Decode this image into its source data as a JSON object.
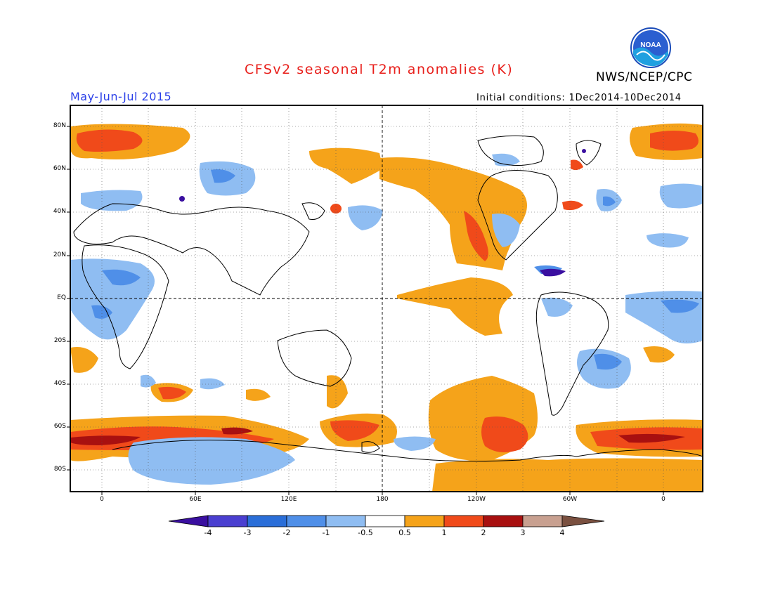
{
  "header": {
    "title": "CFSv2 seasonal T2m anomalies (K)",
    "agency": "NWS/NCEP/CPC",
    "period": "May-Jun-Jul 2015",
    "initial_conditions": "Initial conditions: 1Dec2014-10Dec2014"
  },
  "logo": {
    "text": "NOAA"
  },
  "map": {
    "lat_labels": [
      "80N",
      "60N",
      "40N",
      "20N",
      "EQ",
      "20S",
      "40S",
      "60S",
      "80S"
    ],
    "lon_labels": [
      "0",
      "60E",
      "120E",
      "180",
      "120W",
      "60W",
      "0"
    ],
    "grid": true,
    "projection": "cylindrical equidistant, centred on 180"
  },
  "colorbar": {
    "labels": [
      "-4",
      "-3",
      "-2",
      "-1",
      "-0.5",
      "0.5",
      "1",
      "2",
      "3",
      "4"
    ],
    "colors": [
      "#3a0fa0",
      "#4a3fd0",
      "#2a6ed8",
      "#4f8fe8",
      "#8fbdf2",
      "#ffffff",
      "#f5a31a",
      "#f04a1a",
      "#a81010",
      "#c8a090",
      "#7a5040"
    ]
  }
}
